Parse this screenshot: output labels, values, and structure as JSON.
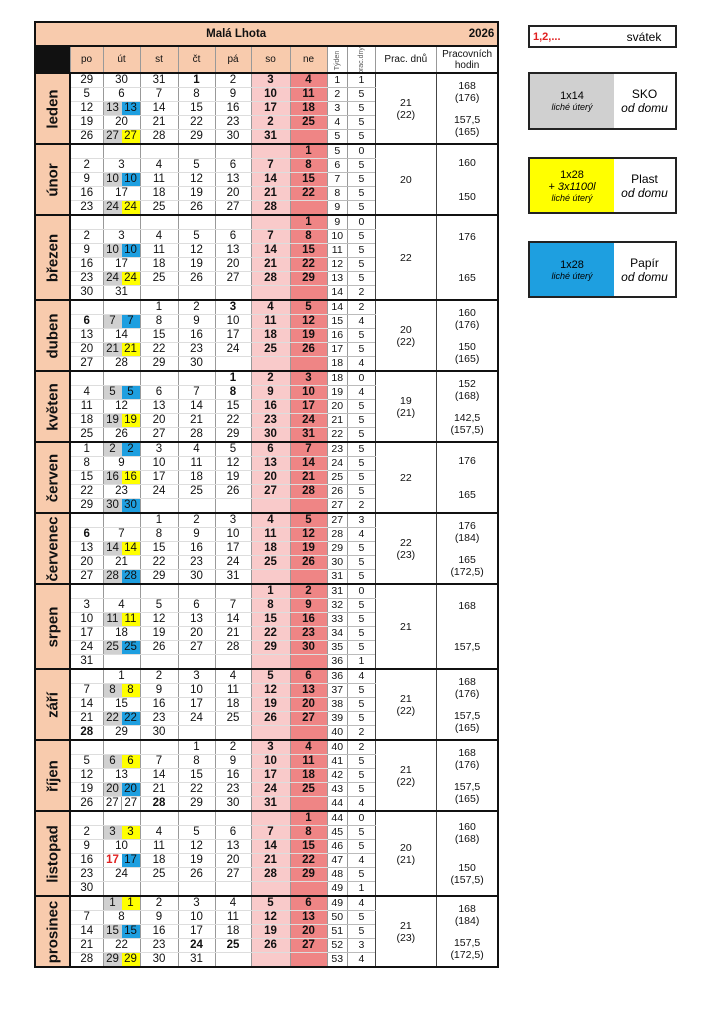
{
  "title": "Malá Lhota",
  "year": "2026",
  "headers": {
    "days": [
      "po",
      "út",
      "st",
      "čt",
      "pá",
      "so",
      "ne"
    ],
    "week": "Týden",
    "workdays_short": "prac.dny",
    "workdays": "Prac. dnů",
    "hours": "Pracovních hodin"
  },
  "colors": {
    "gray": "#d0d0d0",
    "yellow": "#ffff00",
    "blue": "#1e9fe0",
    "white": "#ffffff",
    "header": "#f8cbad",
    "saturday": "#f9caca",
    "sunday": "#ef8585",
    "holiday": "#e02020"
  },
  "legend": [
    {
      "left": "1,2,...",
      "right": "svátek"
    },
    {
      "left": "1x14",
      "left_note": "liché úterý",
      "right": "SKO",
      "right_note": "od domu",
      "color": "#d0d0d0"
    },
    {
      "left": "1x28",
      "left_extra": "+ 3x1100l",
      "left_note": "liché úterý",
      "right": "Plast",
      "right_note": "od domu",
      "color": "#ffff00"
    },
    {
      "left": "1x28",
      "left_note": "liché úterý",
      "right": "Papír",
      "right_note": "od domu",
      "color": "#1e9fe0"
    }
  ],
  "months": [
    {
      "name": "leden",
      "red": [
        "1"
      ],
      "muted": [
        "29",
        "30",
        "31"
      ],
      "days": [
        "21",
        "(22)"
      ],
      "hours": [
        [
          "168",
          "(176)"
        ],
        [
          "157,5",
          "(165)"
        ]
      ],
      "rows": [
        [
          "29",
          "30",
          "31",
          "1",
          "2",
          "3",
          "4",
          "1",
          "1"
        ],
        [
          "5",
          "6",
          "7",
          "8",
          "9",
          "10",
          "11",
          "2",
          "5"
        ],
        [
          "12",
          {
            "l": "13",
            "r": "13",
            "lc": "gray",
            "rc": "blue"
          },
          "14",
          "15",
          "16",
          "17",
          "18",
          "3",
          "5"
        ],
        [
          "19",
          "20",
          "21",
          "22",
          "23",
          "2",
          "25",
          "4",
          "5"
        ],
        [
          "26",
          {
            "l": "27",
            "r": "27",
            "lc": "gray",
            "rc": "yellow"
          },
          "28",
          "29",
          "30",
          "31",
          "",
          "5",
          "5"
        ]
      ]
    },
    {
      "name": "únor",
      "red": [],
      "muted": [],
      "days": [
        "20",
        ""
      ],
      "hours": [
        [
          "160",
          ""
        ],
        [
          "150",
          ""
        ]
      ],
      "rows": [
        [
          "",
          "",
          "",
          "",
          "",
          "",
          "1",
          "5",
          "0"
        ],
        [
          "2",
          "3",
          "4",
          "5",
          "6",
          "7",
          "8",
          "6",
          "5"
        ],
        [
          "9",
          {
            "l": "10",
            "r": "10",
            "lc": "gray",
            "rc": "blue"
          },
          "11",
          "12",
          "13",
          "14",
          "15",
          "7",
          "5"
        ],
        [
          "16",
          "17",
          "18",
          "19",
          "20",
          "21",
          "22",
          "8",
          "5"
        ],
        [
          "23",
          {
            "l": "24",
            "r": "24",
            "lc": "gray",
            "rc": "yellow"
          },
          "25",
          "26",
          "27",
          "28",
          "",
          "9",
          "5"
        ]
      ]
    },
    {
      "name": "březen",
      "red": [],
      "muted": [],
      "days": [
        "22",
        ""
      ],
      "hours": [
        [
          "176",
          ""
        ],
        [
          "165",
          ""
        ]
      ],
      "rows": [
        [
          "",
          "",
          "",
          "",
          "",
          "",
          "1",
          "9",
          "0"
        ],
        [
          "2",
          "3",
          "4",
          "5",
          "6",
          "7",
          "8",
          "10",
          "5"
        ],
        [
          "9",
          {
            "l": "10",
            "r": "10",
            "lc": "gray",
            "rc": "blue"
          },
          "11",
          "12",
          "13",
          "14",
          "15",
          "11",
          "5"
        ],
        [
          "16",
          "17",
          "18",
          "19",
          "20",
          "21",
          "22",
          "12",
          "5"
        ],
        [
          "23",
          {
            "l": "24",
            "r": "24",
            "lc": "gray",
            "rc": "yellow"
          },
          "25",
          "26",
          "27",
          "28",
          "29",
          "13",
          "5"
        ],
        [
          "30",
          "31",
          "",
          "",
          "",
          "",
          "",
          "14",
          "2"
        ]
      ]
    },
    {
      "name": "duben",
      "red": [
        "3",
        "6"
      ],
      "muted": [],
      "days": [
        "20",
        "(22)"
      ],
      "hours": [
        [
          "160",
          "(176)"
        ],
        [
          "150",
          "(165)"
        ]
      ],
      "rows": [
        [
          "",
          "",
          "1",
          "2",
          "3",
          "4",
          "5",
          "14",
          "2"
        ],
        [
          "6",
          {
            "l": "7",
            "r": "7",
            "lc": "gray",
            "rc": "blue"
          },
          "8",
          "9",
          "10",
          "11",
          "12",
          "15",
          "4"
        ],
        [
          "13",
          "14",
          "15",
          "16",
          "17",
          "18",
          "19",
          "16",
          "5"
        ],
        [
          "20",
          {
            "l": "21",
            "r": "21",
            "lc": "gray",
            "rc": "yellow"
          },
          "22",
          "23",
          "24",
          "25",
          "26",
          "17",
          "5"
        ],
        [
          "27",
          "28",
          "29",
          "30",
          "",
          "",
          "",
          "18",
          "4"
        ]
      ]
    },
    {
      "name": "květen",
      "red": [
        "1",
        "8"
      ],
      "muted": [],
      "days": [
        "19",
        "(21)"
      ],
      "hours": [
        [
          "152",
          "(168)"
        ],
        [
          "142,5",
          "(157,5)"
        ]
      ],
      "rows": [
        [
          "",
          "",
          "",
          "",
          "1",
          "2",
          "3",
          "18",
          "0"
        ],
        [
          "4",
          {
            "l": "5",
            "r": "5",
            "lc": "gray",
            "rc": "blue"
          },
          "6",
          "7",
          "8",
          "9",
          "10",
          "19",
          "4"
        ],
        [
          "11",
          "12",
          "13",
          "14",
          "15",
          "16",
          "17",
          "20",
          "5"
        ],
        [
          "18",
          {
            "l": "19",
            "r": "19",
            "lc": "gray",
            "rc": "yellow"
          },
          "20",
          "21",
          "22",
          "23",
          "24",
          "21",
          "5"
        ],
        [
          "25",
          "26",
          "27",
          "28",
          "29",
          "30",
          "31",
          "22",
          "5"
        ]
      ]
    },
    {
      "name": "červen",
      "red": [],
      "muted": [],
      "days": [
        "22",
        ""
      ],
      "hours": [
        [
          "176",
          ""
        ],
        [
          "165",
          ""
        ]
      ],
      "rows": [
        [
          "1",
          {
            "l": "2",
            "r": "2",
            "lc": "gray",
            "rc": "blue"
          },
          "3",
          "4",
          "5",
          "6",
          "7",
          "23",
          "5"
        ],
        [
          "8",
          "9",
          "10",
          "11",
          "12",
          "13",
          "14",
          "24",
          "5"
        ],
        [
          "15",
          {
            "l": "16",
            "r": "16",
            "lc": "gray",
            "rc": "yellow"
          },
          "17",
          "18",
          "19",
          "20",
          "21",
          "25",
          "5"
        ],
        [
          "22",
          "23",
          "24",
          "25",
          "26",
          "27",
          "28",
          "26",
          "5"
        ],
        [
          "29",
          {
            "l": "30",
            "r": "30",
            "lc": "gray",
            "rc": "blue"
          },
          "",
          "",
          "",
          "",
          "",
          "27",
          "2"
        ]
      ]
    },
    {
      "name": "červenec",
      "red": [
        "5",
        "6"
      ],
      "muted": [],
      "days": [
        "22",
        "(23)"
      ],
      "hours": [
        [
          "176",
          "(184)"
        ],
        [
          "165",
          "(172,5)"
        ]
      ],
      "rows": [
        [
          "",
          "",
          "1",
          "2",
          "3",
          "4",
          "5",
          "27",
          "3"
        ],
        [
          "6",
          "7",
          "8",
          "9",
          "10",
          "11",
          "12",
          "28",
          "4"
        ],
        [
          "13",
          {
            "l": "14",
            "r": "14",
            "lc": "gray",
            "rc": "yellow"
          },
          "15",
          "16",
          "17",
          "18",
          "19",
          "29",
          "5"
        ],
        [
          "20",
          "21",
          "22",
          "23",
          "24",
          "25",
          "26",
          "30",
          "5"
        ],
        [
          "27",
          {
            "l": "28",
            "r": "28",
            "lc": "gray",
            "rc": "blue"
          },
          "29",
          "30",
          "31",
          "",
          "",
          "31",
          "5"
        ]
      ]
    },
    {
      "name": "srpen",
      "red": [],
      "muted": [],
      "days": [
        "21",
        ""
      ],
      "hours": [
        [
          "168",
          ""
        ],
        [
          "157,5",
          ""
        ]
      ],
      "rows": [
        [
          "",
          "",
          "",
          "",
          "",
          "1",
          "2",
          "31",
          "0"
        ],
        [
          "3",
          "4",
          "5",
          "6",
          "7",
          "8",
          "9",
          "32",
          "5"
        ],
        [
          "10",
          {
            "l": "11",
            "r": "11",
            "lc": "gray",
            "rc": "yellow"
          },
          "12",
          "13",
          "14",
          "15",
          "16",
          "33",
          "5"
        ],
        [
          "17",
          "18",
          "19",
          "20",
          "21",
          "22",
          "23",
          "34",
          "5"
        ],
        [
          "24",
          {
            "l": "25",
            "r": "25",
            "lc": "gray",
            "rc": "blue"
          },
          "26",
          "27",
          "28",
          "29",
          "30",
          "35",
          "5"
        ],
        [
          "31",
          "",
          "",
          "",
          "",
          "",
          "",
          "36",
          "1"
        ]
      ]
    },
    {
      "name": "září",
      "red": [
        "28"
      ],
      "muted": [],
      "days": [
        "21",
        "(22)"
      ],
      "hours": [
        [
          "168",
          "(176)"
        ],
        [
          "157,5",
          "(165)"
        ]
      ],
      "rows": [
        [
          "",
          "1",
          "2",
          "3",
          "4",
          "5",
          "6",
          "36",
          "4"
        ],
        [
          "7",
          {
            "l": "8",
            "r": "8",
            "lc": "gray",
            "rc": "yellow"
          },
          "9",
          "10",
          "11",
          "12",
          "13",
          "37",
          "5"
        ],
        [
          "14",
          "15",
          "16",
          "17",
          "18",
          "19",
          "20",
          "38",
          "5"
        ],
        [
          "21",
          {
            "l": "22",
            "r": "22",
            "lc": "gray",
            "rc": "blue"
          },
          "23",
          "24",
          "25",
          "26",
          "27",
          "39",
          "5"
        ],
        [
          "28",
          "29",
          "30",
          "",
          "",
          "",
          "",
          "40",
          "2"
        ]
      ]
    },
    {
      "name": "říjen",
      "red": [
        "28"
      ],
      "muted": [],
      "days": [
        "21",
        "(22)"
      ],
      "hours": [
        [
          "168",
          "(176)"
        ],
        [
          "157,5",
          "(165)"
        ]
      ],
      "rows": [
        [
          "",
          "",
          "",
          "1",
          "2",
          "3",
          "4",
          "40",
          "2"
        ],
        [
          "5",
          {
            "l": "6",
            "r": "6",
            "lc": "gray",
            "rc": "yellow"
          },
          "7",
          "8",
          "9",
          "10",
          "11",
          "41",
          "5"
        ],
        [
          "12",
          "13",
          "14",
          "15",
          "16",
          "17",
          "18",
          "42",
          "5"
        ],
        [
          "19",
          {
            "l": "20",
            "r": "20",
            "lc": "gray",
            "rc": "blue"
          },
          "21",
          "22",
          "23",
          "24",
          "25",
          "43",
          "5"
        ],
        [
          "26",
          {
            "l": "27",
            "r": "27",
            "lc": "white",
            "rc": "white"
          },
          "28",
          "29",
          "30",
          "31",
          "",
          "44",
          "4"
        ]
      ]
    },
    {
      "name": "listopad",
      "red": [
        "17"
      ],
      "muted": [],
      "days": [
        "20",
        "(21)"
      ],
      "hours": [
        [
          "160",
          "(168)"
        ],
        [
          "150",
          "(157,5)"
        ]
      ],
      "rows": [
        [
          "",
          "",
          "",
          "",
          "",
          "",
          "1",
          "44",
          "0"
        ],
        [
          "2",
          {
            "l": "3",
            "r": "3",
            "lc": "gray",
            "rc": "yellow"
          },
          "4",
          "5",
          "6",
          "7",
          "8",
          "45",
          "5"
        ],
        [
          "9",
          "10",
          "11",
          "12",
          "13",
          "14",
          "15",
          "46",
          "5"
        ],
        [
          "16",
          {
            "l": "17",
            "r": "17",
            "lc": "white",
            "rc": "blue"
          },
          "18",
          "19",
          "20",
          "21",
          "22",
          "47",
          "4"
        ],
        [
          "23",
          "24",
          "25",
          "26",
          "27",
          "28",
          "29",
          "48",
          "5"
        ],
        [
          "30",
          "",
          "",
          "",
          "",
          "",
          "",
          "49",
          "1"
        ]
      ]
    },
    {
      "name": "prosinec",
      "red": [
        "24",
        "25",
        "26"
      ],
      "muted": [],
      "days": [
        "21",
        "(23)"
      ],
      "hours": [
        [
          "168",
          "(184)"
        ],
        [
          "157,5",
          "(172,5)"
        ]
      ],
      "rows": [
        [
          "",
          {
            "l": "1",
            "r": "1",
            "lc": "gray",
            "rc": "yellow"
          },
          "2",
          "3",
          "4",
          "5",
          "6",
          "49",
          "4"
        ],
        [
          "7",
          "8",
          "9",
          "10",
          "11",
          "12",
          "13",
          "50",
          "5"
        ],
        [
          "14",
          {
            "l": "15",
            "r": "15",
            "lc": "gray",
            "rc": "blue"
          },
          "16",
          "17",
          "18",
          "19",
          "20",
          "51",
          "5"
        ],
        [
          "21",
          "22",
          "23",
          "24",
          "25",
          "26",
          "27",
          "52",
          "3"
        ],
        [
          "28",
          {
            "l": "29",
            "r": "29",
            "lc": "gray",
            "rc": "yellow"
          },
          "30",
          "31",
          "",
          "",
          "",
          "53",
          "4"
        ]
      ]
    }
  ]
}
